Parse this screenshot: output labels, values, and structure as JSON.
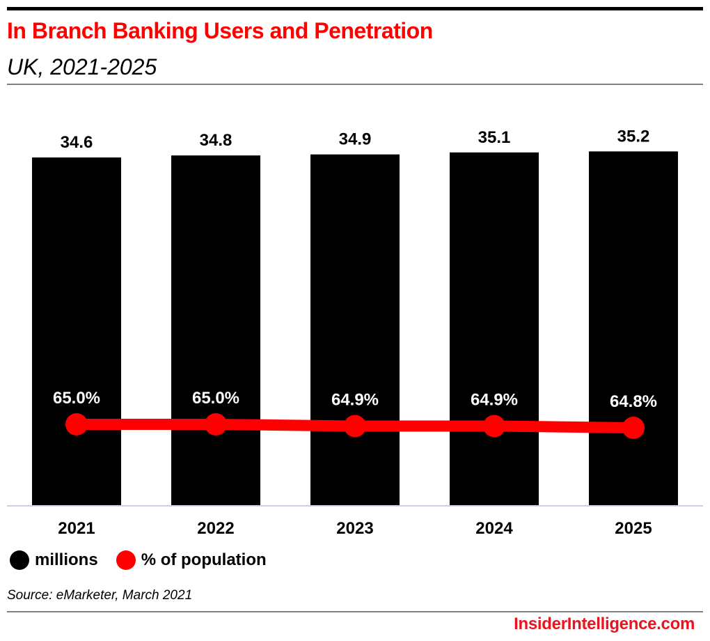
{
  "header": {
    "title": "In Branch Banking Users and Penetration",
    "subtitle": "UK, 2021-2025"
  },
  "legend": [
    {
      "label": "millions",
      "color": "#000000"
    },
    {
      "label": "% of population",
      "color": "#ff0000"
    }
  ],
  "footer": {
    "source": "Source: eMarketer, March 2021",
    "brand": "InsiderIntelligence.com"
  },
  "colors": {
    "title": "#ff0000",
    "bars": "#000000",
    "line": "#ff0000",
    "baseline": "#c8d4e4",
    "brand": "#e8141e"
  },
  "chart_data": {
    "type": "bar",
    "title": "In Branch Banking Users and Penetration",
    "subtitle": "UK, 2021-2025",
    "xlabel": "",
    "ylabel": "",
    "categories": [
      "2021",
      "2022",
      "2023",
      "2024",
      "2025"
    ],
    "series": [
      {
        "name": "millions",
        "type": "bar",
        "values": [
          34.6,
          34.8,
          34.9,
          35.1,
          35.2
        ],
        "labels": [
          "34.6",
          "34.8",
          "34.9",
          "35.1",
          "35.2"
        ]
      },
      {
        "name": "% of population",
        "type": "line",
        "values": [
          65.0,
          65.0,
          64.9,
          64.9,
          64.8
        ],
        "labels": [
          "65.0%",
          "65.0%",
          "64.9%",
          "64.9%",
          "64.8%"
        ]
      }
    ],
    "ylim": [
      0,
      35.2
    ],
    "grid": false,
    "legend_position": "bottom-left"
  }
}
